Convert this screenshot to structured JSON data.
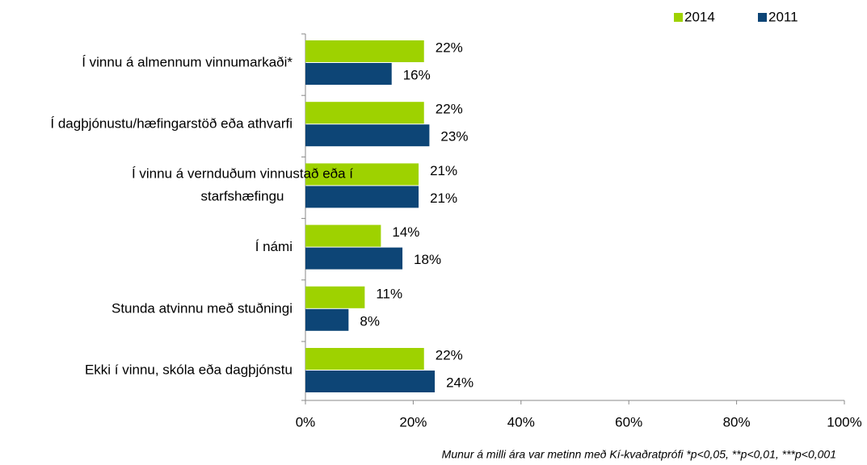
{
  "chart_data": {
    "type": "bar",
    "orientation": "horizontal",
    "categories": [
      "Í vinnu á almennum vinnumarkaði*",
      "Í dagþjónustu/hæfingarstöð eða athvarfi",
      "Í vinnu á vernduðum vinnustað eða í starfshæfingu",
      "Í námi",
      "Stunda atvinnu með stuðningi",
      "Ekki í vinnu, skóla eða dagþjónstu"
    ],
    "series": [
      {
        "name": "2014",
        "color": "#9ed200",
        "values": [
          22,
          22,
          21,
          14,
          11,
          22
        ],
        "value_labels": [
          "22%",
          "22%",
          "21%",
          "14%",
          "11%",
          "22%"
        ]
      },
      {
        "name": "2011",
        "color": "#0d4576",
        "values": [
          16,
          23,
          21,
          18,
          8,
          24
        ],
        "value_labels": [
          "16%",
          "23%",
          "21%",
          "18%",
          "8%",
          "24%"
        ]
      }
    ],
    "xlim": [
      0,
      100
    ],
    "xticks": [
      {
        "value": 0,
        "label": "0%"
      },
      {
        "value": 20,
        "label": "20%"
      },
      {
        "value": 40,
        "label": "40%"
      },
      {
        "value": 60,
        "label": "60%"
      },
      {
        "value": 80,
        "label": "80%"
      },
      {
        "value": 100,
        "label": "100%"
      }
    ],
    "legend": "top-right",
    "annotation": "Munur á milli ára var metinn með Kí-kvaðratprófi *p<0,05, **p<0,01, ***p<0,001"
  }
}
